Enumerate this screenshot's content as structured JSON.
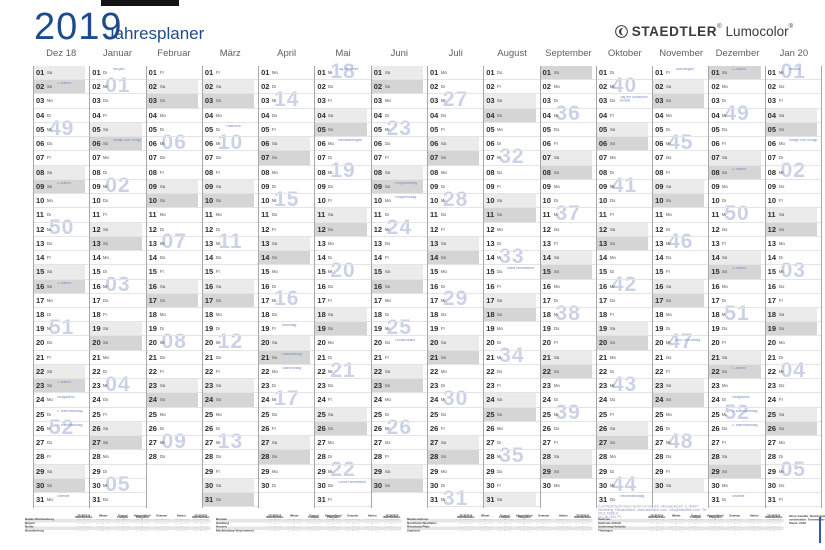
{
  "title": {
    "year": "2019",
    "subtitle": "Jahresplaner"
  },
  "brand": {
    "name": "STAEDTLER",
    "name_reg": "®",
    "product": "Lumocolor",
    "product_reg": "®",
    "logo_icon": "mars-head-icon"
  },
  "weekday_cycle": [
    "Mo",
    "Di",
    "Mi",
    "Do",
    "Fr",
    "Sa",
    "So"
  ],
  "months": [
    {
      "label": "Dez 18",
      "days": 31,
      "start": 5,
      "weeks": [
        {
          "n": "49",
          "d": 5
        },
        {
          "n": "50",
          "d": 12
        },
        {
          "n": "51",
          "d": 19
        },
        {
          "n": "52",
          "d": 26
        }
      ],
      "holidays": [
        {
          "d": 2,
          "t": "1. Advent"
        },
        {
          "d": 9,
          "t": "2. Advent"
        },
        {
          "d": 16,
          "t": "3. Advent"
        },
        {
          "d": 23,
          "t": "4. Advent"
        },
        {
          "d": 24,
          "t": "Heiligabend"
        },
        {
          "d": 25,
          "t": "1. Weihnachtstag"
        },
        {
          "d": 26,
          "t": "2. Weihnachtstag"
        },
        {
          "d": 31,
          "t": "Silvester"
        }
      ]
    },
    {
      "label": "Januar",
      "days": 31,
      "start": 1,
      "weeks": [
        {
          "n": "01",
          "d": 2
        },
        {
          "n": "02",
          "d": 9
        },
        {
          "n": "03",
          "d": 16
        },
        {
          "n": "04",
          "d": 23
        },
        {
          "n": "05",
          "d": 30
        }
      ],
      "holidays": [
        {
          "d": 1,
          "t": "Neujahr"
        },
        {
          "d": 6,
          "t": "Heilige Drei Könige"
        }
      ]
    },
    {
      "label": "Februar",
      "days": 28,
      "start": 4,
      "weeks": [
        {
          "n": "06",
          "d": 6
        },
        {
          "n": "07",
          "d": 13
        },
        {
          "n": "08",
          "d": 20
        },
        {
          "n": "09",
          "d": 27
        }
      ],
      "holidays": []
    },
    {
      "label": "März",
      "days": 31,
      "start": 4,
      "weeks": [
        {
          "n": "10",
          "d": 6
        },
        {
          "n": "11",
          "d": 13
        },
        {
          "n": "12",
          "d": 20
        },
        {
          "n": "13",
          "d": 27
        }
      ],
      "holidays": [
        {
          "d": 5,
          "t": "Fastnacht"
        }
      ]
    },
    {
      "label": "April",
      "days": 30,
      "start": 0,
      "weeks": [
        {
          "n": "14",
          "d": 3
        },
        {
          "n": "15",
          "d": 10
        },
        {
          "n": "16",
          "d": 17
        },
        {
          "n": "17",
          "d": 24
        }
      ],
      "holidays": [
        {
          "d": 19,
          "t": "Karfreitag"
        },
        {
          "d": 21,
          "t": "Ostersonntag"
        },
        {
          "d": 22,
          "t": "Ostermontag"
        }
      ]
    },
    {
      "label": "Mai",
      "days": 31,
      "start": 2,
      "weeks": [
        {
          "n": "18",
          "d": 1
        },
        {
          "n": "19",
          "d": 8
        },
        {
          "n": "20",
          "d": 15
        },
        {
          "n": "21",
          "d": 22
        },
        {
          "n": "22",
          "d": 29
        }
      ],
      "holidays": [
        {
          "d": 1,
          "t": "Tag der Arbeit"
        },
        {
          "d": 6,
          "t": "Ramadanbeginn"
        },
        {
          "d": 30,
          "t": "Christi Himmelfahrt"
        }
      ]
    },
    {
      "label": "Juni",
      "days": 30,
      "start": 5,
      "weeks": [
        {
          "n": "23",
          "d": 5
        },
        {
          "n": "24",
          "d": 12
        },
        {
          "n": "25",
          "d": 19
        },
        {
          "n": "26",
          "d": 26
        }
      ],
      "holidays": [
        {
          "d": 9,
          "t": "Pfingstsonntag"
        },
        {
          "d": 10,
          "t": "Pfingstmontag"
        },
        {
          "d": 20,
          "t": "Fronleichnam"
        }
      ]
    },
    {
      "label": "Juli",
      "days": 31,
      "start": 0,
      "weeks": [
        {
          "n": "27",
          "d": 3
        },
        {
          "n": "28",
          "d": 10
        },
        {
          "n": "29",
          "d": 17
        },
        {
          "n": "30",
          "d": 24
        },
        {
          "n": "31",
          "d": 31
        }
      ],
      "holidays": []
    },
    {
      "label": "August",
      "days": 31,
      "start": 3,
      "weeks": [
        {
          "n": "32",
          "d": 7
        },
        {
          "n": "33",
          "d": 14
        },
        {
          "n": "34",
          "d": 21
        },
        {
          "n": "35",
          "d": 28
        }
      ],
      "holidays": [
        {
          "d": 15,
          "t": "Mariä Himmelfahrt"
        }
      ]
    },
    {
      "label": "September",
      "days": 30,
      "start": 6,
      "weeks": [
        {
          "n": "36",
          "d": 4
        },
        {
          "n": "37",
          "d": 11
        },
        {
          "n": "38",
          "d": 18
        },
        {
          "n": "39",
          "d": 25
        }
      ],
      "holidays": []
    },
    {
      "label": "Oktober",
      "days": 31,
      "start": 1,
      "weeks": [
        {
          "n": "40",
          "d": 2
        },
        {
          "n": "41",
          "d": 9
        },
        {
          "n": "42",
          "d": 16
        },
        {
          "n": "43",
          "d": 23
        },
        {
          "n": "44",
          "d": 30
        }
      ],
      "holidays": [
        {
          "d": 3,
          "t": "Tag der Deutschen Einheit"
        },
        {
          "d": 31,
          "t": "Reformationstag"
        }
      ]
    },
    {
      "label": "November",
      "days": 30,
      "start": 4,
      "weeks": [
        {
          "n": "45",
          "d": 6
        },
        {
          "n": "46",
          "d": 13
        },
        {
          "n": "47",
          "d": 20
        },
        {
          "n": "48",
          "d": 27
        }
      ],
      "holidays": [
        {
          "d": 1,
          "t": "Allerheiligen"
        },
        {
          "d": 20,
          "t": "Buß- und Bettag"
        }
      ]
    },
    {
      "label": "Dezember",
      "days": 31,
      "start": 6,
      "weeks": [
        {
          "n": "49",
          "d": 4
        },
        {
          "n": "50",
          "d": 11
        },
        {
          "n": "51",
          "d": 18
        },
        {
          "n": "52",
          "d": 25
        }
      ],
      "holidays": [
        {
          "d": 1,
          "t": "1. Advent"
        },
        {
          "d": 8,
          "t": "2. Advent"
        },
        {
          "d": 15,
          "t": "3. Advent"
        },
        {
          "d": 22,
          "t": "4. Advent"
        },
        {
          "d": 24,
          "t": "Heiligabend"
        },
        {
          "d": 25,
          "t": "1. Weihnachtstag"
        },
        {
          "d": 26,
          "t": "2. Weihnachtstag"
        },
        {
          "d": 31,
          "t": "Silvester"
        }
      ]
    },
    {
      "label": "Jan 20",
      "days": 31,
      "start": 2,
      "weeks": [
        {
          "n": "01",
          "d": 1
        },
        {
          "n": "02",
          "d": 8
        },
        {
          "n": "03",
          "d": 15
        },
        {
          "n": "04",
          "d": 22
        },
        {
          "n": "05",
          "d": 29
        }
      ],
      "holidays": [
        {
          "d": 1,
          "t": "Neujahr"
        },
        {
          "d": 6,
          "t": "Heilige Drei Könige"
        }
      ]
    }
  ],
  "colors": {
    "accent_blue": "#1d4b8f",
    "week_number": "#cbd1e7",
    "holiday_text": "#7388c2",
    "saturday_row": "#ebebeb",
    "sunday_row": "#d5d5d5"
  },
  "copyright": {
    "line1": "© STAEDTLER Mars GmbH & Co. KG, Moosäckerstr. 3, 90427 Nürnberg, Deutschland, www.staedtler.com, info@staedtler.com, Tel. 0911 9365-0",
    "line2": "Art.-Nr. 641 P1"
  },
  "ferien_table": {
    "col_headers": [
      "2018/2019|Weihnachten",
      "Winter",
      "Ostern/|Frühjahr",
      "Himmelfahrt/|Pfingsten",
      "Sommer",
      "Herbst",
      "2019/2020|Weihnachten"
    ],
    "blocks": [
      {
        "states": [
          "Baden-Württemberg",
          "Bayern",
          "Berlin",
          "Brandenburg"
        ]
      },
      {
        "states": [
          "Bremen",
          "Hamburg",
          "Hessen",
          "Mecklenburg-Vorpommern"
        ]
      },
      {
        "states": [
          "Niedersachsen",
          "Nordrhein-Westfalen",
          "Rheinland-Pfalz",
          "Saarland"
        ]
      },
      {
        "states": [
          "Sachsen",
          "Sachsen-Anhalt",
          "Schleswig-Holstein",
          "Thüringen"
        ]
      }
    ],
    "cell_text": "··.··. – ··.··.",
    "note_lines": [
      "Ohne Gewähr. Nachträgliche Änderungen",
      "vorbehalten. Termine der Bundesländer.",
      "Stand: 2018"
    ]
  }
}
